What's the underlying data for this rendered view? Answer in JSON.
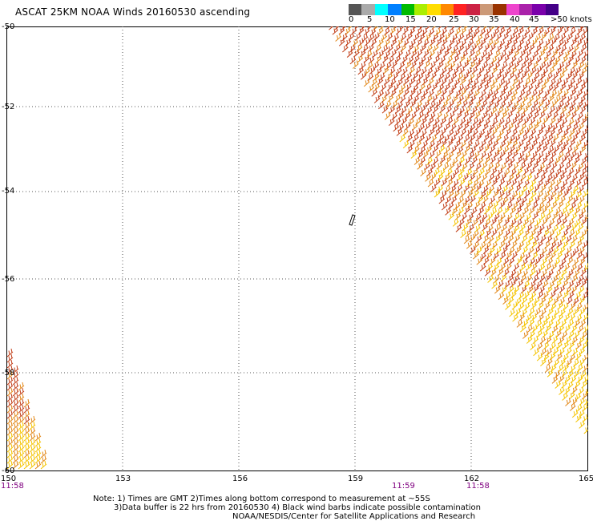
{
  "header": {
    "title": "ASCAT 25KM NOAA Winds 20160530 ascending"
  },
  "legend": {
    "labels": [
      "0",
      "5",
      "10",
      "15",
      "20",
      "25",
      "30",
      "35",
      "40",
      "45",
      ">50 knots"
    ],
    "colors": [
      "#555555",
      "#aaaaaa",
      "#00ffff",
      "#0080ff",
      "#00bb00",
      "#aaee00",
      "#ffdd00",
      "#ff8800",
      "#ff2222",
      "#cc2244",
      "#cc9977",
      "#993300",
      "#ee44cc",
      "#aa22aa",
      "#7a00aa",
      "#440088"
    ]
  },
  "map": {
    "lat_labels": [
      "-50",
      "-52",
      "-54",
      "-56",
      "-58",
      "-60"
    ],
    "lon_labels": [
      "150",
      "153",
      "156",
      "159",
      "162",
      "165"
    ],
    "times": [
      {
        "text": "11:58",
        "lon": "150"
      },
      {
        "text": "11:59",
        "lon": "160.2"
      },
      {
        "text": "11:58",
        "lon": "162.2"
      }
    ]
  },
  "footer": {
    "line1": "Note: 1) Times are GMT 2)Times along bottom correspond to measurement at ~55S",
    "line2": "3)Data buffer is 22 hrs from 20160530 4) Black wind barbs indicate possible contamination",
    "line3": "NOAA/NESDIS/Center for Satellite Applications and Research"
  },
  "colors": {
    "grid": "#555555",
    "barb_dark": "#c2401a",
    "barb_mid": "#e2881a",
    "barb_light": "#f5c400"
  }
}
